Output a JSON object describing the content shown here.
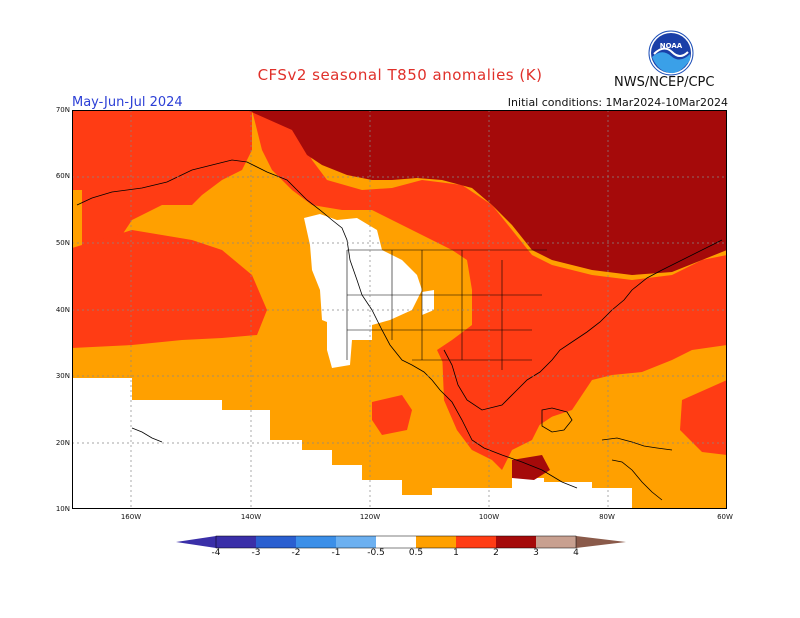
{
  "header": {
    "title": "CFSv2 seasonal T850 anomalies (K)",
    "agency": "NWS/NCEP/CPC",
    "season": "May-Jun-Jul 2024",
    "initial_conditions": "Initial conditions: 1Mar2024-10Mar2024",
    "logo_text": "NOAA"
  },
  "axes": {
    "lat_labels": [
      "70N",
      "60N",
      "50N",
      "40N",
      "30N",
      "20N",
      "10N"
    ],
    "lon_labels": [
      "160W",
      "140W",
      "120W",
      "100W",
      "80W",
      "60W"
    ]
  },
  "colorbar": {
    "labels": [
      "-4",
      "-3",
      "-2",
      "-1",
      "-0.5",
      "0.5",
      "1",
      "2",
      "3",
      "4"
    ],
    "colors": [
      "#3a2fa8",
      "#2a5fd0",
      "#3b8fe8",
      "#6cb0f0",
      "#ffffff",
      "#ffa000",
      "#ff3c14",
      "#a50a0a",
      "#c8a090",
      "#8a5a4a"
    ]
  },
  "legend_colors": {
    "light_orange": "#ffa000",
    "red_orange": "#ff3c14",
    "dark_red": "#a50a0a",
    "white": "#ffffff"
  }
}
